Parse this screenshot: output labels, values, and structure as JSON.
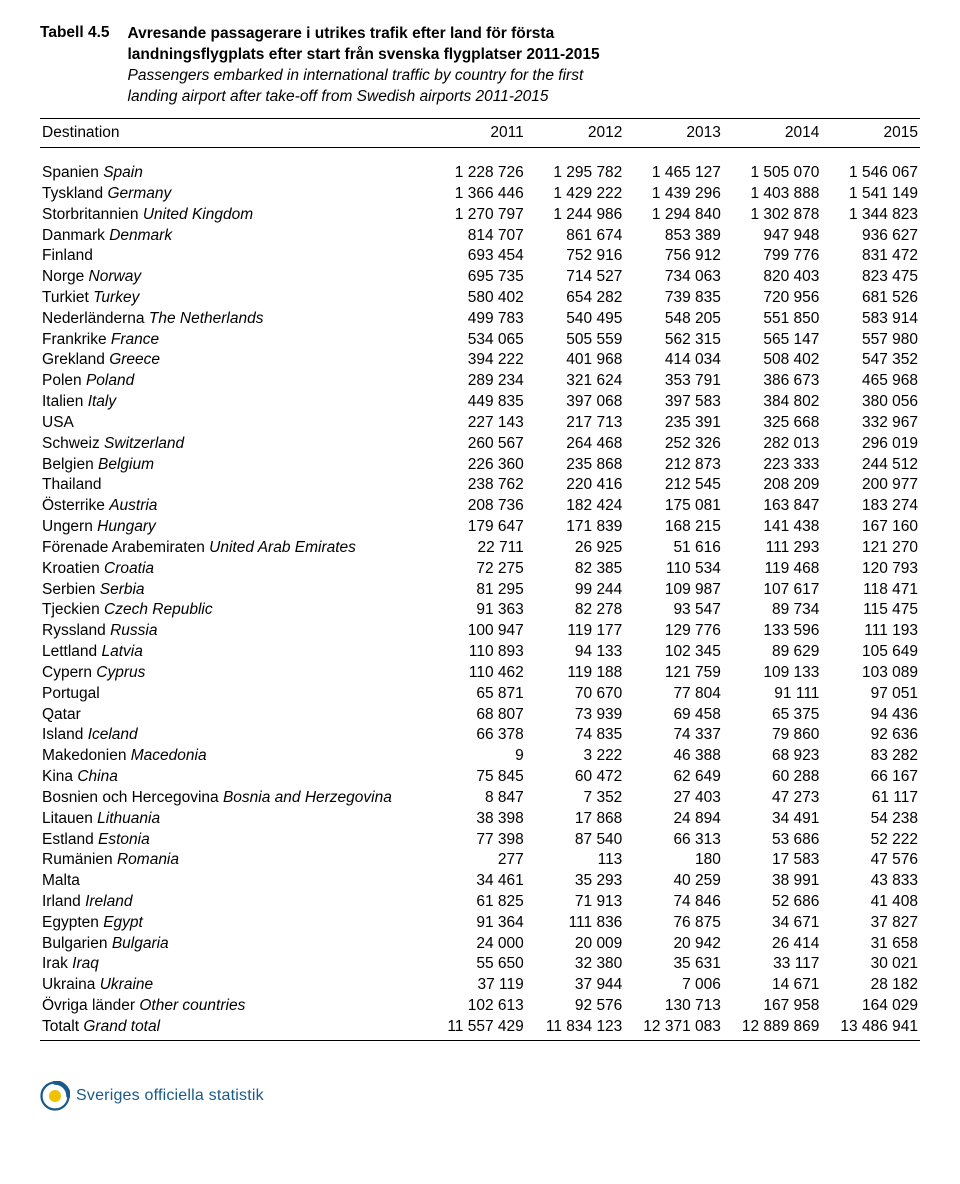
{
  "header": {
    "tabell": "Tabell 4.5",
    "title_sv_l1": "Avresande passagerare i utrikes trafik efter land för första",
    "title_sv_l2": "landningsflygplats efter start från svenska flygplatser 2011-2015",
    "title_en_l1": "Passengers embarked in international traffic by country for the first",
    "title_en_l2": "landing airport after take-off from Swedish airports 2011-2015"
  },
  "table": {
    "columns": [
      "Destination",
      "2011",
      "2012",
      "2013",
      "2014",
      "2015"
    ],
    "col_widths_pct": [
      44,
      11.2,
      11.2,
      11.2,
      11.2,
      11.2
    ],
    "text_align": [
      "left",
      "right",
      "right",
      "right",
      "right",
      "right"
    ],
    "border_color": "#000000",
    "font_size_pt": 11.5,
    "rows": [
      {
        "sv": "Spanien",
        "en": "Spain",
        "v": [
          "1 228 726",
          "1 295 782",
          "1 465 127",
          "1 505 070",
          "1 546 067"
        ]
      },
      {
        "sv": "Tyskland",
        "en": "Germany",
        "v": [
          "1 366 446",
          "1 429 222",
          "1 439 296",
          "1 403 888",
          "1 541 149"
        ]
      },
      {
        "sv": "Storbritannien",
        "en": "United Kingdom",
        "v": [
          "1 270 797",
          "1 244 986",
          "1 294 840",
          "1 302 878",
          "1 344 823"
        ]
      },
      {
        "sv": "Danmark",
        "en": "Denmark",
        "v": [
          "814 707",
          "861 674",
          "853 389",
          "947 948",
          "936 627"
        ]
      },
      {
        "sv": "Finland",
        "en": "",
        "v": [
          "693 454",
          "752 916",
          "756 912",
          "799 776",
          "831 472"
        ]
      },
      {
        "sv": "Norge",
        "en": "Norway",
        "v": [
          "695 735",
          "714 527",
          "734 063",
          "820 403",
          "823 475"
        ]
      },
      {
        "sv": "Turkiet",
        "en": "Turkey",
        "v": [
          "580 402",
          "654 282",
          "739 835",
          "720 956",
          "681 526"
        ]
      },
      {
        "sv": "Nederländerna",
        "en": "The Netherlands",
        "v": [
          "499 783",
          "540 495",
          "548 205",
          "551 850",
          "583 914"
        ]
      },
      {
        "sv": "Frankrike",
        "en": "France",
        "v": [
          "534 065",
          "505 559",
          "562 315",
          "565 147",
          "557 980"
        ]
      },
      {
        "sv": "Grekland",
        "en": "Greece",
        "v": [
          "394 222",
          "401 968",
          "414 034",
          "508 402",
          "547 352"
        ]
      },
      {
        "sv": "Polen",
        "en": "Poland",
        "v": [
          "289 234",
          "321 624",
          "353 791",
          "386 673",
          "465 968"
        ]
      },
      {
        "sv": "Italien",
        "en": "Italy",
        "v": [
          "449 835",
          "397 068",
          "397 583",
          "384 802",
          "380 056"
        ]
      },
      {
        "sv": "USA",
        "en": "",
        "v": [
          "227 143",
          "217 713",
          "235 391",
          "325 668",
          "332 967"
        ]
      },
      {
        "sv": "Schweiz",
        "en": "Switzerland",
        "v": [
          "260 567",
          "264 468",
          "252 326",
          "282 013",
          "296 019"
        ]
      },
      {
        "sv": "Belgien",
        "en": "Belgium",
        "v": [
          "226 360",
          "235 868",
          "212 873",
          "223 333",
          "244 512"
        ]
      },
      {
        "sv": "Thailand",
        "en": "",
        "v": [
          "238 762",
          "220 416",
          "212 545",
          "208 209",
          "200 977"
        ]
      },
      {
        "sv": "Österrike",
        "en": "Austria",
        "v": [
          "208 736",
          "182 424",
          "175 081",
          "163 847",
          "183 274"
        ]
      },
      {
        "sv": "Ungern",
        "en": "Hungary",
        "v": [
          "179 647",
          "171 839",
          "168 215",
          "141 438",
          "167 160"
        ]
      },
      {
        "sv": "Förenade Arabemiraten",
        "en": "United Arab Emirates",
        "v": [
          "22 711",
          "26 925",
          "51 616",
          "111 293",
          "121 270"
        ]
      },
      {
        "sv": "Kroatien",
        "en": "Croatia",
        "v": [
          "72 275",
          "82 385",
          "110 534",
          "119 468",
          "120 793"
        ]
      },
      {
        "sv": "Serbien",
        "en": "Serbia",
        "v": [
          "81 295",
          "99 244",
          "109 987",
          "107 617",
          "118 471"
        ]
      },
      {
        "sv": "Tjeckien",
        "en": "Czech Republic",
        "v": [
          "91 363",
          "82 278",
          "93 547",
          "89 734",
          "115 475"
        ]
      },
      {
        "sv": "Ryssland",
        "en": "Russia",
        "v": [
          "100 947",
          "119 177",
          "129 776",
          "133 596",
          "111 193"
        ]
      },
      {
        "sv": "Lettland",
        "en": "Latvia",
        "v": [
          "110 893",
          "94 133",
          "102 345",
          "89 629",
          "105 649"
        ]
      },
      {
        "sv": "Cypern",
        "en": "Cyprus",
        "v": [
          "110 462",
          "119 188",
          "121 759",
          "109 133",
          "103 089"
        ]
      },
      {
        "sv": "Portugal",
        "en": "",
        "v": [
          "65 871",
          "70 670",
          "77 804",
          "91 111",
          "97 051"
        ]
      },
      {
        "sv": "Qatar",
        "en": "",
        "v": [
          "68 807",
          "73 939",
          "69 458",
          "65 375",
          "94 436"
        ]
      },
      {
        "sv": "Island",
        "en": "Iceland",
        "v": [
          "66 378",
          "74 835",
          "74 337",
          "79 860",
          "92 636"
        ]
      },
      {
        "sv": "Makedonien",
        "en": "Macedonia",
        "v": [
          "9",
          "3 222",
          "46 388",
          "68 923",
          "83 282"
        ]
      },
      {
        "sv": "Kina",
        "en": "China",
        "v": [
          "75 845",
          "60 472",
          "62 649",
          "60 288",
          "66 167"
        ]
      },
      {
        "sv": "Bosnien och Hercegovina",
        "en": "Bosnia and Herzegovina",
        "v": [
          "8 847",
          "7 352",
          "27 403",
          "47 273",
          "61 117"
        ]
      },
      {
        "sv": "Litauen",
        "en": "Lithuania",
        "v": [
          "38 398",
          "17 868",
          "24 894",
          "34 491",
          "54 238"
        ]
      },
      {
        "sv": "Estland",
        "en": "Estonia",
        "v": [
          "77 398",
          "87 540",
          "66 313",
          "53 686",
          "52 222"
        ]
      },
      {
        "sv": "Rumänien",
        "en": "Romania",
        "v": [
          "277",
          "113",
          "180",
          "17 583",
          "47 576"
        ]
      },
      {
        "sv": "Malta",
        "en": "",
        "v": [
          "34 461",
          "35 293",
          "40 259",
          "38 991",
          "43 833"
        ]
      },
      {
        "sv": "Irland",
        "en": "Ireland",
        "v": [
          "61 825",
          "71 913",
          "74 846",
          "52 686",
          "41 408"
        ]
      },
      {
        "sv": "Egypten",
        "en": "Egypt",
        "v": [
          "91 364",
          "111 836",
          "76 875",
          "34 671",
          "37 827"
        ]
      },
      {
        "sv": "Bulgarien",
        "en": "Bulgaria",
        "v": [
          "24 000",
          "20 009",
          "20 942",
          "26 414",
          "31 658"
        ]
      },
      {
        "sv": "Irak",
        "en": "Iraq",
        "v": [
          "55 650",
          "32 380",
          "35 631",
          "33 117",
          "30 021"
        ]
      },
      {
        "sv": "Ukraina",
        "en": "Ukraine",
        "v": [
          "37 119",
          "37 944",
          "7 006",
          "14 671",
          "28 182"
        ]
      },
      {
        "sv": "Övriga länder",
        "en": "Other countries",
        "v": [
          "102 613",
          "92 576",
          "130 713",
          "167 958",
          "164 029"
        ]
      }
    ],
    "total": {
      "sv": "Totalt",
      "en": "Grand total",
      "v": [
        "11 557 429",
        "11 834 123",
        "12 371 083",
        "12 889 869",
        "13 486 941"
      ]
    }
  },
  "footer": {
    "text": "Sveriges officiella statistik",
    "text_color": "#1a5a8a",
    "logo_colors": {
      "outer": "#1a5a8a",
      "inner": "#f2c200"
    }
  }
}
